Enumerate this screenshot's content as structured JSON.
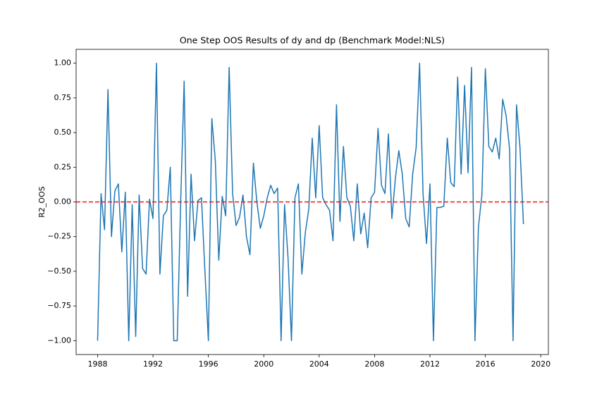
{
  "chart_data": {
    "type": "line",
    "title": "One Step OOS Results of dy and dp (Benchmark Model:NLS)",
    "y_label": "R2_OOS",
    "x": [
      1988,
      1988.25,
      1988.5,
      1988.75,
      1989,
      1989.25,
      1989.5,
      1989.75,
      1990,
      1990.25,
      1990.5,
      1990.75,
      1991,
      1991.25,
      1991.5,
      1991.75,
      1992,
      1992.25,
      1992.5,
      1992.75,
      1993,
      1993.25,
      1993.5,
      1993.75,
      1994,
      1994.25,
      1994.5,
      1994.75,
      1995,
      1995.25,
      1995.5,
      1995.75,
      1996,
      1996.25,
      1996.5,
      1996.75,
      1997,
      1997.25,
      1997.5,
      1997.75,
      1998,
      1998.25,
      1998.5,
      1998.75,
      1999,
      1999.25,
      1999.5,
      1999.75,
      2000,
      2000.25,
      2000.5,
      2000.75,
      2001,
      2001.25,
      2001.5,
      2001.75,
      2002,
      2002.25,
      2002.5,
      2002.75,
      2003,
      2003.25,
      2003.5,
      2003.75,
      2004,
      2004.25,
      2004.5,
      2004.75,
      2005,
      2005.25,
      2005.5,
      2005.75,
      2006,
      2006.25,
      2006.5,
      2006.75,
      2007,
      2007.25,
      2007.5,
      2007.75,
      2008,
      2008.25,
      2008.5,
      2008.75,
      2009,
      2009.25,
      2009.5,
      2009.75,
      2010,
      2010.25,
      2010.5,
      2010.75,
      2011,
      2011.25,
      2011.5,
      2011.75,
      2012,
      2012.25,
      2012.5,
      2012.75,
      2013,
      2013.25,
      2013.5,
      2013.75,
      2014,
      2014.25,
      2014.5,
      2014.75,
      2015,
      2015.25,
      2015.5,
      2015.75,
      2016,
      2016.25,
      2016.5,
      2016.75,
      2017,
      2017.25,
      2017.5,
      2017.75,
      2018,
      2018.25,
      2018.5,
      2018.75
    ],
    "series": [
      {
        "name": "R2_OOS",
        "color": "#1f77b4",
        "values": [
          -1.0,
          0.06,
          -0.2,
          0.81,
          -0.25,
          0.08,
          0.13,
          -0.36,
          0.07,
          -1.0,
          -0.02,
          -0.97,
          0.05,
          -0.48,
          -0.52,
          0.02,
          -0.12,
          1.0,
          -0.52,
          -0.1,
          -0.06,
          0.25,
          -1.0,
          -1.0,
          0.0,
          0.87,
          -0.68,
          0.2,
          -0.28,
          0.01,
          0.03,
          -0.5,
          -1.0,
          0.6,
          0.3,
          -0.42,
          0.04,
          -0.1,
          0.97,
          0.06,
          -0.17,
          -0.11,
          0.05,
          -0.25,
          -0.38,
          0.28,
          0.0,
          -0.19,
          -0.1,
          0.03,
          0.12,
          0.06,
          0.1,
          -1.0,
          -0.02,
          -0.4,
          -1.0,
          0.03,
          0.13,
          -0.52,
          -0.22,
          -0.05,
          0.46,
          0.03,
          0.55,
          0.03,
          -0.02,
          -0.06,
          -0.28,
          0.7,
          -0.14,
          0.4,
          0.03,
          -0.03,
          -0.28,
          0.13,
          -0.23,
          -0.08,
          -0.33,
          0.03,
          0.07,
          0.53,
          0.12,
          0.06,
          0.49,
          -0.12,
          0.17,
          0.37,
          0.2,
          -0.12,
          -0.18,
          0.2,
          0.39,
          1.0,
          0.06,
          -0.3,
          0.13,
          -1.0,
          -0.04,
          -0.04,
          -0.03,
          0.46,
          0.14,
          0.11,
          0.9,
          0.2,
          0.84,
          0.21,
          0.97,
          -1.0,
          -0.18,
          0.05,
          0.96,
          0.4,
          0.36,
          0.46,
          0.31,
          0.74,
          0.62,
          0.38,
          -1.0,
          0.7,
          0.39,
          -0.16
        ]
      }
    ],
    "hline": {
      "value": 0,
      "color": "#e8181b",
      "dashed": true
    },
    "xlim": [
      1986.45,
      2020.55
    ],
    "xticks": [
      1988,
      1992,
      1996,
      2000,
      2004,
      2008,
      2012,
      2016,
      2020
    ],
    "ylim": [
      -1.1,
      1.1
    ],
    "yticks": [
      {
        "value": -1,
        "label": "−1.00"
      },
      {
        "value": -0.75,
        "label": "−0.75"
      },
      {
        "value": -0.5,
        "label": "−0.50"
      },
      {
        "value": -0.25,
        "label": "−0.25"
      },
      {
        "value": 0,
        "label": "0.00"
      },
      {
        "value": 0.25,
        "label": "0.25"
      },
      {
        "value": 0.5,
        "label": "0.50"
      },
      {
        "value": 0.75,
        "label": "0.75"
      },
      {
        "value": 1,
        "label": "1.00"
      }
    ],
    "grid": false
  }
}
